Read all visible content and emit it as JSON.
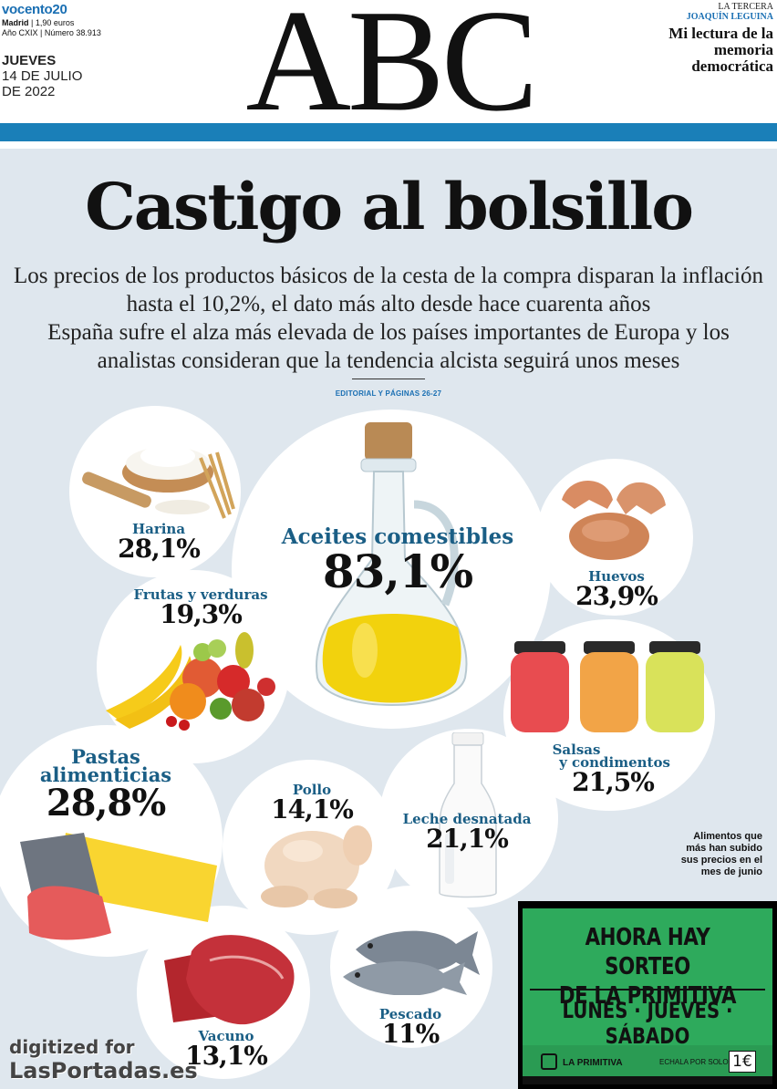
{
  "masthead": {
    "brand": "vocento",
    "brand_badge": "20",
    "city": "Madrid",
    "price": "1,90 euros",
    "year": "Año CXIX",
    "issue": "Número 38.913",
    "weekday": "JUEVES",
    "date_line1": "14 DE JULIO",
    "date_line2": "DE 2022",
    "logo": "ABC",
    "section": "LA TERCERA",
    "author": "JOAQUÍN LEGUINA",
    "headline": "Mi lectura de la memoria democrática"
  },
  "cover": {
    "title": "Castigo al bolsillo",
    "deck1": "Los precios de los productos básicos de la cesta de la compra disparan la inflación hasta el 10,2%, el dato más alto desde hace cuarenta años",
    "deck2": "España sufre el alza más elevada de los países importantes de Europa y los analistas consideran que la tendencia alcista seguirá unos meses",
    "reference": "EDITORIAL Y PÁGINAS 26-27",
    "note": "Alimentos que más han subido sus precios en el mes de junio"
  },
  "items": {
    "harina": {
      "label": "Harina",
      "value": "28,1%"
    },
    "aceites": {
      "label": "Aceites comestibles",
      "value": "83,1%"
    },
    "huevos": {
      "label": "Huevos",
      "value": "23,9%"
    },
    "frutas": {
      "label": "Frutas y verduras",
      "value": "19,3%"
    },
    "salsas": {
      "label1": "Salsas",
      "label2": "y condimentos",
      "value": "21,5%"
    },
    "pastas": {
      "label1": "Pastas",
      "label2": "alimenticias",
      "value": "28,8%"
    },
    "pollo": {
      "label": "Pollo",
      "value": "14,1%"
    },
    "leche": {
      "label": "Leche desnatada",
      "value": "21,1%"
    },
    "vacuno": {
      "label": "Vacuno",
      "value": "13,1%"
    },
    "pescado": {
      "label": "Pescado",
      "value": "11%"
    }
  },
  "ad": {
    "line1": "AHORA HAY SORTEO",
    "line2": "DE LA PRIMITIVA",
    "line3": "LUNES · JUEVES · SÁBADO",
    "brand": "LA PRIMITIVA",
    "price_text": "ECHALA POR SOLO",
    "price": "1€"
  },
  "watermark": {
    "line1": "digitized for",
    "line2": "LasPortadas.es"
  },
  "colors": {
    "accent_blue": "#1a7fb8",
    "label_blue": "#1a5e85",
    "background": "#dfe7ee",
    "ad_green": "#2eaa5c"
  }
}
